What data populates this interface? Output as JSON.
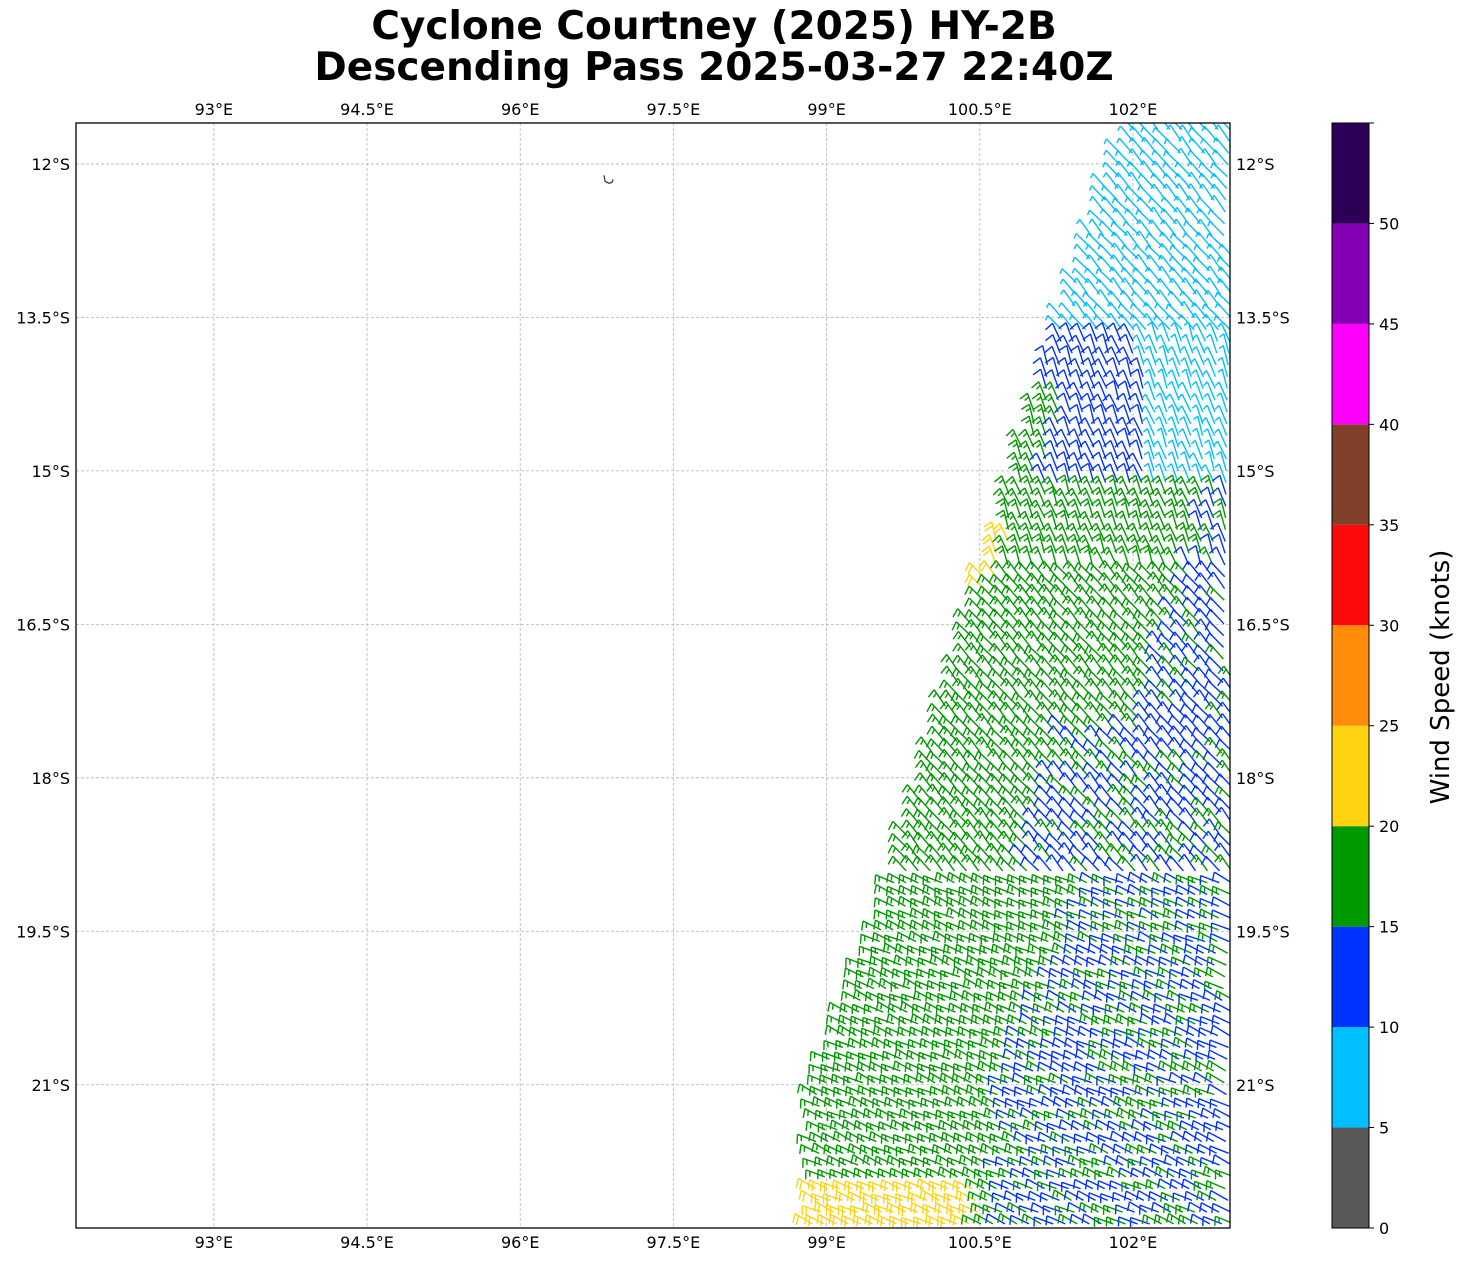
{
  "title": {
    "line1": "Cyclone Courtney (2025) HY-2B",
    "line2": "Descending Pass 2025-03-27 22:40Z"
  },
  "map": {
    "extent": {
      "lon": [
        91.65,
        102.95
      ],
      "lat": [
        -22.4,
        -11.6
      ]
    },
    "lon_ticks": [
      {
        "value": 93,
        "label": "93°E"
      },
      {
        "value": 94.5,
        "label": "94.5°E"
      },
      {
        "value": 96,
        "label": "96°E"
      },
      {
        "value": 97.5,
        "label": "97.5°E"
      },
      {
        "value": 99,
        "label": "99°E"
      },
      {
        "value": 100.5,
        "label": "100.5°E"
      },
      {
        "value": 102,
        "label": "102°E"
      }
    ],
    "lat_ticks": [
      {
        "value": -12,
        "label": "12°S"
      },
      {
        "value": -13.5,
        "label": "13.5°S"
      },
      {
        "value": -15,
        "label": "15°S"
      },
      {
        "value": -16.5,
        "label": "16.5°S"
      },
      {
        "value": -18,
        "label": "18°S"
      },
      {
        "value": -19.5,
        "label": "19.5°S"
      },
      {
        "value": -21,
        "label": "21°S"
      }
    ],
    "gridlines": true,
    "island": {
      "name": "christmas-island",
      "lon": 96.85,
      "lat": -12.17
    }
  },
  "colorbar": {
    "label": "Wind Speed (knots)",
    "bins": [
      {
        "min": 0,
        "max": 5,
        "color": "#595959"
      },
      {
        "min": 5,
        "max": 10,
        "color": "#00bfff"
      },
      {
        "min": 10,
        "max": 15,
        "color": "#0033ff"
      },
      {
        "min": 15,
        "max": 20,
        "color": "#009900"
      },
      {
        "min": 20,
        "max": 25,
        "color": "#ffd310"
      },
      {
        "min": 25,
        "max": 30,
        "color": "#ff8c0a"
      },
      {
        "min": 30,
        "max": 35,
        "color": "#ff0a0a"
      },
      {
        "min": 35,
        "max": 40,
        "color": "#7f3f28"
      },
      {
        "min": 40,
        "max": 45,
        "color": "#ff00ff"
      },
      {
        "min": 45,
        "max": 50,
        "color": "#8400b5"
      },
      {
        "min": 50,
        "max": 55,
        "color": "#2d0057"
      }
    ],
    "tick_labels": [
      "0",
      "5",
      "10",
      "15",
      "20",
      "25",
      "30",
      "35",
      "40",
      "45",
      "50"
    ]
  },
  "chart_data": {
    "type": "scatter",
    "title": "Cyclone Courtney (2025) HY-2B Descending Pass 2025-03-27 22:40Z",
    "xlabel": "",
    "ylabel": "",
    "xlim": [
      91.65,
      102.95
    ],
    "ylim": [
      -22.4,
      -11.6
    ],
    "swath": {
      "description_units": "degrees lon/lat",
      "west_edge": [
        [
          101.9,
          -11.6
        ],
        [
          101.05,
          -14.1
        ],
        [
          100.7,
          -15.3
        ],
        [
          99.9,
          -18.0
        ],
        [
          99.45,
          -19.5
        ],
        [
          98.85,
          -21.0
        ],
        [
          98.8,
          -22.4
        ]
      ],
      "east_edge": [
        102.95,
        -11.6,
        102.95,
        -22.4
      ]
    },
    "wind_regions": [
      {
        "speed_bin": "5-10",
        "lat_range": [
          -11.6,
          -15.2
        ],
        "direction_deg_to": 135
      },
      {
        "speed_bin": "10-15",
        "lat_range": [
          -13.6,
          -22.4
        ],
        "direction_deg_to": 150
      },
      {
        "speed_bin": "15-20",
        "lat_range": [
          -14.3,
          -22.4
        ],
        "direction_deg_to": 120
      },
      {
        "speed_bin": "20-25",
        "lat_range": [
          -15.7,
          -16.2
        ],
        "direction_deg_to": 110
      },
      {
        "speed_bin": "20-25",
        "lat_range": [
          -22.0,
          -22.4
        ],
        "direction_deg_to": 120
      }
    ]
  }
}
